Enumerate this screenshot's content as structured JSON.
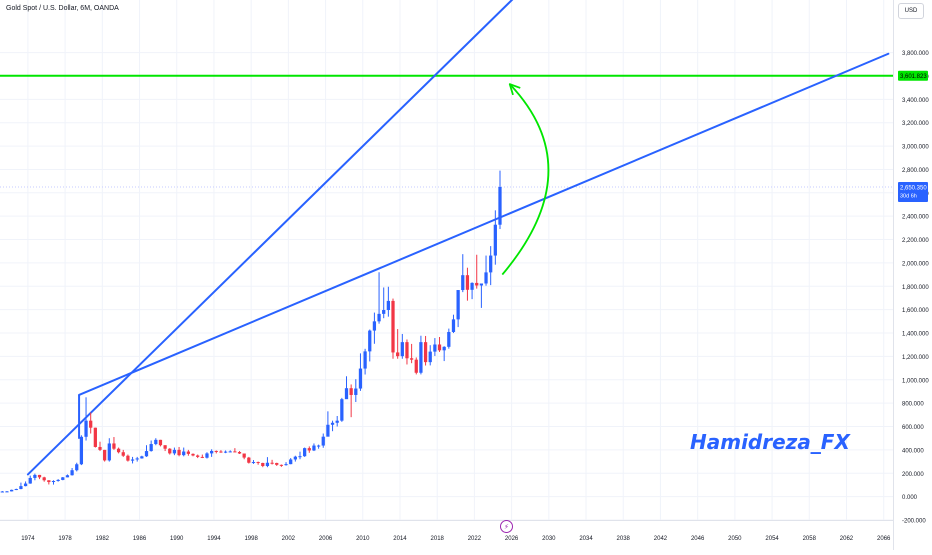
{
  "header": {
    "symbol_title": "Gold Spot / U.S. Dollar, 6M, OANDA",
    "currency": "USD"
  },
  "watermark": "Hamidreza_FX",
  "event_badge_glyph": "⚡",
  "chart_data": {
    "type": "candlestick",
    "x_axis": {
      "ticks": [
        "1974",
        "1978",
        "1982",
        "1986",
        "1990",
        "1994",
        "1998",
        "2002",
        "2006",
        "2010",
        "2014",
        "2018",
        "2022",
        "2026",
        "2030",
        "2034",
        "2038",
        "2042",
        "2046",
        "2050",
        "2054",
        "2058",
        "2062",
        "2066"
      ],
      "range": [
        1971,
        2067
      ]
    },
    "y_axis": {
      "ticks": [
        "3,800.000",
        "3,600.000",
        "3,400.000",
        "3,200.000",
        "3,000.000",
        "2,800.000",
        "2,600.000",
        "2,400.000",
        "2,200.000",
        "2,000.000",
        "1,800.000",
        "1,600.000",
        "1,400.000",
        "1,200.000",
        "1,000.000",
        "800.000",
        "600.000",
        "400.000",
        "200.000",
        "0.000",
        "-200.000"
      ],
      "range": [
        -200,
        4250
      ]
    },
    "price_label": {
      "value": "2,650.350",
      "sub": "30d 6h",
      "price": 2650
    },
    "level_label": {
      "value": "3,601.823",
      "price": 3601.823
    },
    "colors": {
      "up": "#2962ff",
      "down": "#f23645",
      "trendline": "#2962ff",
      "level": "#00e600",
      "arrow": "#00e600",
      "last_price_line": "#c5cbff"
    },
    "candles": [
      {
        "t": 1971.0,
        "o": 40,
        "h": 48,
        "l": 38,
        "c": 44
      },
      {
        "t": 1971.5,
        "o": 44,
        "h": 48,
        "l": 42,
        "c": 45
      },
      {
        "t": 1972.0,
        "o": 45,
        "h": 60,
        "l": 44,
        "c": 58
      },
      {
        "t": 1972.5,
        "o": 58,
        "h": 68,
        "l": 56,
        "c": 65
      },
      {
        "t": 1973.0,
        "o": 65,
        "h": 120,
        "l": 63,
        "c": 90
      },
      {
        "t": 1973.5,
        "o": 90,
        "h": 130,
        "l": 88,
        "c": 112
      },
      {
        "t": 1974.0,
        "o": 112,
        "h": 180,
        "l": 110,
        "c": 160
      },
      {
        "t": 1974.5,
        "o": 160,
        "h": 197,
        "l": 140,
        "c": 186
      },
      {
        "t": 1975.0,
        "o": 186,
        "h": 186,
        "l": 150,
        "c": 165
      },
      {
        "t": 1975.5,
        "o": 165,
        "h": 170,
        "l": 128,
        "c": 140
      },
      {
        "t": 1976.0,
        "o": 140,
        "h": 140,
        "l": 104,
        "c": 125
      },
      {
        "t": 1976.5,
        "o": 125,
        "h": 140,
        "l": 103,
        "c": 134
      },
      {
        "t": 1977.0,
        "o": 134,
        "h": 150,
        "l": 128,
        "c": 143
      },
      {
        "t": 1977.5,
        "o": 143,
        "h": 168,
        "l": 140,
        "c": 165
      },
      {
        "t": 1978.0,
        "o": 165,
        "h": 190,
        "l": 165,
        "c": 183
      },
      {
        "t": 1978.5,
        "o": 183,
        "h": 245,
        "l": 180,
        "c": 226
      },
      {
        "t": 1979.0,
        "o": 226,
        "h": 290,
        "l": 216,
        "c": 277
      },
      {
        "t": 1979.5,
        "o": 277,
        "h": 525,
        "l": 270,
        "c": 512
      },
      {
        "t": 1980.0,
        "o": 512,
        "h": 850,
        "l": 480,
        "c": 650
      },
      {
        "t": 1980.5,
        "o": 650,
        "h": 720,
        "l": 540,
        "c": 590
      },
      {
        "t": 1981.0,
        "o": 590,
        "h": 590,
        "l": 420,
        "c": 425
      },
      {
        "t": 1981.5,
        "o": 425,
        "h": 470,
        "l": 390,
        "c": 400
      },
      {
        "t": 1982.0,
        "o": 400,
        "h": 400,
        "l": 300,
        "c": 310
      },
      {
        "t": 1982.5,
        "o": 310,
        "h": 500,
        "l": 300,
        "c": 455
      },
      {
        "t": 1983.0,
        "o": 455,
        "h": 510,
        "l": 400,
        "c": 410
      },
      {
        "t": 1983.5,
        "o": 410,
        "h": 420,
        "l": 370,
        "c": 380
      },
      {
        "t": 1984.0,
        "o": 380,
        "h": 400,
        "l": 340,
        "c": 350
      },
      {
        "t": 1984.5,
        "o": 350,
        "h": 360,
        "l": 300,
        "c": 308
      },
      {
        "t": 1985.0,
        "o": 308,
        "h": 340,
        "l": 284,
        "c": 318
      },
      {
        "t": 1985.5,
        "o": 318,
        "h": 340,
        "l": 300,
        "c": 327
      },
      {
        "t": 1986.0,
        "o": 327,
        "h": 350,
        "l": 325,
        "c": 345
      },
      {
        "t": 1986.5,
        "o": 345,
        "h": 440,
        "l": 340,
        "c": 390
      },
      {
        "t": 1987.0,
        "o": 390,
        "h": 480,
        "l": 385,
        "c": 450
      },
      {
        "t": 1987.5,
        "o": 450,
        "h": 500,
        "l": 440,
        "c": 486
      },
      {
        "t": 1988.0,
        "o": 486,
        "h": 486,
        "l": 430,
        "c": 440
      },
      {
        "t": 1988.5,
        "o": 440,
        "h": 440,
        "l": 390,
        "c": 410
      },
      {
        "t": 1989.0,
        "o": 410,
        "h": 415,
        "l": 360,
        "c": 370
      },
      {
        "t": 1989.5,
        "o": 370,
        "h": 420,
        "l": 355,
        "c": 400
      },
      {
        "t": 1990.0,
        "o": 400,
        "h": 425,
        "l": 345,
        "c": 355
      },
      {
        "t": 1990.5,
        "o": 355,
        "h": 420,
        "l": 345,
        "c": 386
      },
      {
        "t": 1991.0,
        "o": 386,
        "h": 400,
        "l": 350,
        "c": 366
      },
      {
        "t": 1991.5,
        "o": 366,
        "h": 370,
        "l": 345,
        "c": 352
      },
      {
        "t": 1992.0,
        "o": 352,
        "h": 360,
        "l": 330,
        "c": 340
      },
      {
        "t": 1992.5,
        "o": 340,
        "h": 360,
        "l": 330,
        "c": 333
      },
      {
        "t": 1993.0,
        "o": 333,
        "h": 380,
        "l": 326,
        "c": 370
      },
      {
        "t": 1993.5,
        "o": 370,
        "h": 405,
        "l": 340,
        "c": 391
      },
      {
        "t": 1994.0,
        "o": 391,
        "h": 395,
        "l": 370,
        "c": 386
      },
      {
        "t": 1994.5,
        "o": 386,
        "h": 398,
        "l": 375,
        "c": 383
      },
      {
        "t": 1995.0,
        "o": 383,
        "h": 395,
        "l": 372,
        "c": 385
      },
      {
        "t": 1995.5,
        "o": 385,
        "h": 396,
        "l": 380,
        "c": 387
      },
      {
        "t": 1996.0,
        "o": 387,
        "h": 415,
        "l": 380,
        "c": 382
      },
      {
        "t": 1996.5,
        "o": 382,
        "h": 390,
        "l": 365,
        "c": 369
      },
      {
        "t": 1997.0,
        "o": 369,
        "h": 369,
        "l": 320,
        "c": 334
      },
      {
        "t": 1997.5,
        "o": 334,
        "h": 340,
        "l": 283,
        "c": 290
      },
      {
        "t": 1998.0,
        "o": 290,
        "h": 313,
        "l": 280,
        "c": 296
      },
      {
        "t": 1998.5,
        "o": 296,
        "h": 300,
        "l": 273,
        "c": 288
      },
      {
        "t": 1999.0,
        "o": 288,
        "h": 290,
        "l": 252,
        "c": 262
      },
      {
        "t": 1999.5,
        "o": 262,
        "h": 338,
        "l": 252,
        "c": 290
      },
      {
        "t": 2000.0,
        "o": 290,
        "h": 315,
        "l": 275,
        "c": 288
      },
      {
        "t": 2000.5,
        "o": 288,
        "h": 290,
        "l": 263,
        "c": 272
      },
      {
        "t": 2001.0,
        "o": 272,
        "h": 275,
        "l": 255,
        "c": 270
      },
      {
        "t": 2001.5,
        "o": 270,
        "h": 295,
        "l": 265,
        "c": 278
      },
      {
        "t": 2002.0,
        "o": 278,
        "h": 330,
        "l": 277,
        "c": 318
      },
      {
        "t": 2002.5,
        "o": 318,
        "h": 350,
        "l": 300,
        "c": 342
      },
      {
        "t": 2003.0,
        "o": 342,
        "h": 385,
        "l": 320,
        "c": 346
      },
      {
        "t": 2003.5,
        "o": 346,
        "h": 420,
        "l": 340,
        "c": 415
      },
      {
        "t": 2004.0,
        "o": 415,
        "h": 430,
        "l": 375,
        "c": 395
      },
      {
        "t": 2004.5,
        "o": 395,
        "h": 455,
        "l": 390,
        "c": 437
      },
      {
        "t": 2005.0,
        "o": 437,
        "h": 445,
        "l": 410,
        "c": 437
      },
      {
        "t": 2005.5,
        "o": 437,
        "h": 540,
        "l": 418,
        "c": 513
      },
      {
        "t": 2006.0,
        "o": 513,
        "h": 730,
        "l": 520,
        "c": 615
      },
      {
        "t": 2006.5,
        "o": 615,
        "h": 650,
        "l": 560,
        "c": 632
      },
      {
        "t": 2007.0,
        "o": 632,
        "h": 690,
        "l": 600,
        "c": 650
      },
      {
        "t": 2007.5,
        "o": 650,
        "h": 845,
        "l": 640,
        "c": 834
      },
      {
        "t": 2008.0,
        "o": 834,
        "h": 1030,
        "l": 840,
        "c": 928
      },
      {
        "t": 2008.5,
        "o": 928,
        "h": 960,
        "l": 680,
        "c": 870
      },
      {
        "t": 2009.0,
        "o": 870,
        "h": 1005,
        "l": 810,
        "c": 925
      },
      {
        "t": 2009.5,
        "o": 925,
        "h": 1226,
        "l": 905,
        "c": 1096
      },
      {
        "t": 2010.0,
        "o": 1096,
        "h": 1265,
        "l": 1045,
        "c": 1243
      },
      {
        "t": 2010.5,
        "o": 1243,
        "h": 1430,
        "l": 1157,
        "c": 1421
      },
      {
        "t": 2011.0,
        "o": 1421,
        "h": 1575,
        "l": 1308,
        "c": 1500
      },
      {
        "t": 2011.5,
        "o": 1500,
        "h": 1920,
        "l": 1480,
        "c": 1564
      },
      {
        "t": 2012.0,
        "o": 1564,
        "h": 1790,
        "l": 1527,
        "c": 1597
      },
      {
        "t": 2012.5,
        "o": 1597,
        "h": 1796,
        "l": 1540,
        "c": 1675
      },
      {
        "t": 2013.0,
        "o": 1675,
        "h": 1695,
        "l": 1180,
        "c": 1234
      },
      {
        "t": 2013.5,
        "o": 1234,
        "h": 1434,
        "l": 1180,
        "c": 1202
      },
      {
        "t": 2014.0,
        "o": 1202,
        "h": 1392,
        "l": 1180,
        "c": 1322
      },
      {
        "t": 2014.5,
        "o": 1322,
        "h": 1345,
        "l": 1131,
        "c": 1184
      },
      {
        "t": 2015.0,
        "o": 1184,
        "h": 1307,
        "l": 1142,
        "c": 1172
      },
      {
        "t": 2015.5,
        "o": 1172,
        "h": 1191,
        "l": 1046,
        "c": 1060
      },
      {
        "t": 2016.0,
        "o": 1060,
        "h": 1377,
        "l": 1046,
        "c": 1322
      },
      {
        "t": 2016.5,
        "o": 1322,
        "h": 1375,
        "l": 1122,
        "c": 1151
      },
      {
        "t": 2017.0,
        "o": 1151,
        "h": 1296,
        "l": 1123,
        "c": 1241
      },
      {
        "t": 2017.5,
        "o": 1241,
        "h": 1357,
        "l": 1204,
        "c": 1302
      },
      {
        "t": 2018.0,
        "o": 1302,
        "h": 1366,
        "l": 1238,
        "c": 1252
      },
      {
        "t": 2018.5,
        "o": 1252,
        "h": 1287,
        "l": 1160,
        "c": 1282
      },
      {
        "t": 2019.0,
        "o": 1282,
        "h": 1438,
        "l": 1266,
        "c": 1409
      },
      {
        "t": 2019.5,
        "o": 1409,
        "h": 1557,
        "l": 1400,
        "c": 1517
      },
      {
        "t": 2020.0,
        "o": 1517,
        "h": 1765,
        "l": 1451,
        "c": 1768
      },
      {
        "t": 2020.5,
        "o": 1768,
        "h": 2075,
        "l": 1750,
        "c": 1895
      },
      {
        "t": 2021.0,
        "o": 1895,
        "h": 1959,
        "l": 1677,
        "c": 1770
      },
      {
        "t": 2021.5,
        "o": 1770,
        "h": 1834,
        "l": 1690,
        "c": 1829
      },
      {
        "t": 2022.0,
        "o": 1829,
        "h": 2070,
        "l": 1780,
        "c": 1807
      },
      {
        "t": 2022.5,
        "o": 1807,
        "h": 1815,
        "l": 1615,
        "c": 1824
      },
      {
        "t": 2023.0,
        "o": 1824,
        "h": 2063,
        "l": 1805,
        "c": 1919
      },
      {
        "t": 2023.5,
        "o": 1919,
        "h": 2144,
        "l": 1810,
        "c": 2063
      },
      {
        "t": 2024.0,
        "o": 2063,
        "h": 2450,
        "l": 1985,
        "c": 2327
      },
      {
        "t": 2024.5,
        "o": 2327,
        "h": 2790,
        "l": 2290,
        "c": 2650
      }
    ],
    "trendlines": [
      {
        "name": "steep-trendline",
        "x1": 1974.0,
        "y1": 190,
        "x2": 2030.0,
        "y2": 4560
      },
      {
        "name": "upper-trendline",
        "x1": 1979.5,
        "y1": 870,
        "x2": 2066.5,
        "y2": 3790
      }
    ],
    "connector": {
      "x1": 1979.5,
      "y1": 870,
      "x2": 1979.5,
      "y2": 495
    },
    "arrow_curve": {
      "start_x": 2025.0,
      "start_y": 1900,
      "ctrl_x": 2034.5,
      "ctrl_y": 2800,
      "end_x": 2025.8,
      "end_y": 3530
    }
  }
}
